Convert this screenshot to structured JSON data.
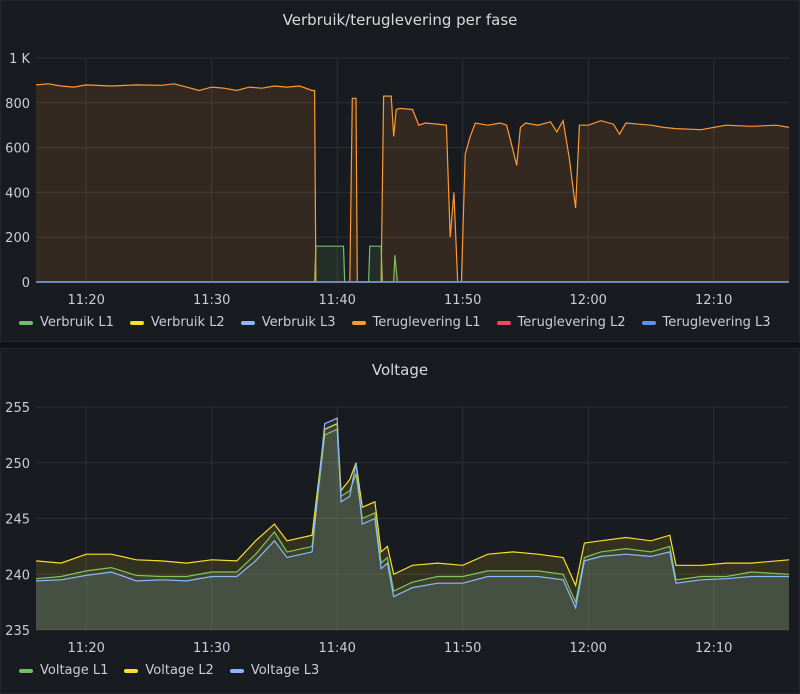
{
  "colors": {
    "verbruik_l1": "#73bf69",
    "verbruik_l2": "#fade2a",
    "verbruik_l3": "#8ab8ff",
    "teruglevering_l1": "#ff9830",
    "teruglevering_l2": "#f2495c",
    "teruglevering_l3": "#5794f2",
    "voltage_l1": "#73bf69",
    "voltage_l2": "#fade2a",
    "voltage_l3": "#8ab8ff"
  },
  "panels": {
    "power": {
      "title": "Verbruik/teruglevering per fase"
    },
    "voltage": {
      "title": "Voltage"
    }
  },
  "chart_data": [
    {
      "type": "area",
      "title": "Verbruik/teruglevering per fase",
      "xlabel": "",
      "ylabel": "",
      "x_ticks": [
        "11:20",
        "11:30",
        "11:40",
        "11:50",
        "12:00",
        "12:10"
      ],
      "y_ticks": [
        "0",
        "200",
        "400",
        "600",
        "800",
        "1 K"
      ],
      "xlim": [
        "11:16",
        "12:16"
      ],
      "ylim": [
        0,
        1000
      ],
      "grid": true,
      "legend_position": "bottom-left",
      "series": [
        {
          "name": "Verbruik L1",
          "color_key": "verbruik_l1",
          "points": [
            [
              "11:16",
              0
            ],
            [
              "11:38.2",
              0
            ],
            [
              "11:38.3",
              160
            ],
            [
              "11:40.5",
              160
            ],
            [
              "11:40.6",
              0
            ],
            [
              "11:42.5",
              0
            ],
            [
              "11:42.6",
              160
            ],
            [
              "11:43.5",
              160
            ],
            [
              "11:43.6",
              0
            ],
            [
              "11:44.5",
              0
            ],
            [
              "11:44.6",
              120
            ],
            [
              "11:44.8",
              0
            ],
            [
              "12:16",
              0
            ]
          ]
        },
        {
          "name": "Verbruik L2",
          "color_key": "verbruik_l2",
          "points": [
            [
              "11:16",
              0
            ],
            [
              "12:16",
              0
            ]
          ]
        },
        {
          "name": "Verbruik L3",
          "color_key": "verbruik_l3",
          "points": [
            [
              "11:16",
              0
            ],
            [
              "12:16",
              0
            ]
          ]
        },
        {
          "name": "Teruglevering L1",
          "color_key": "teruglevering_l1",
          "points": [
            [
              "11:16",
              880
            ],
            [
              "11:17",
              885
            ],
            [
              "11:18",
              875
            ],
            [
              "11:19",
              870
            ],
            [
              "11:20",
              880
            ],
            [
              "11:22",
              875
            ],
            [
              "11:24",
              880
            ],
            [
              "11:26",
              878
            ],
            [
              "11:27",
              885
            ],
            [
              "11:28",
              870
            ],
            [
              "11:29",
              855
            ],
            [
              "11:30",
              870
            ],
            [
              "11:31",
              865
            ],
            [
              "11:32",
              855
            ],
            [
              "11:33",
              870
            ],
            [
              "11:34",
              865
            ],
            [
              "11:35",
              875
            ],
            [
              "11:36",
              870
            ],
            [
              "11:37",
              875
            ],
            [
              "11:38",
              855
            ],
            [
              "11:38.2",
              855
            ],
            [
              "11:38.3",
              0
            ],
            [
              "11:41",
              0
            ],
            [
              "11:41.2",
              820
            ],
            [
              "11:41.5",
              820
            ],
            [
              "11:41.6",
              0
            ],
            [
              "11:43.5",
              0
            ],
            [
              "11:43.7",
              830
            ],
            [
              "11:44.3",
              830
            ],
            [
              "11:44.5",
              650
            ],
            [
              "11:44.7",
              770
            ],
            [
              "11:45",
              775
            ],
            [
              "11:46",
              770
            ],
            [
              "11:46.5",
              700
            ],
            [
              "11:47",
              710
            ],
            [
              "11:48",
              705
            ],
            [
              "11:48.7",
              700
            ],
            [
              "11:49",
              200
            ],
            [
              "11:49.3",
              400
            ],
            [
              "11:49.6",
              0
            ],
            [
              "11:49.9",
              0
            ],
            [
              "11:50.2",
              570
            ],
            [
              "11:50.6",
              650
            ],
            [
              "11:51",
              710
            ],
            [
              "11:52",
              700
            ],
            [
              "11:53",
              710
            ],
            [
              "11:53.5",
              700
            ],
            [
              "11:54",
              590
            ],
            [
              "11:54.3",
              520
            ],
            [
              "11:54.6",
              690
            ],
            [
              "11:55",
              710
            ],
            [
              "11:56",
              700
            ],
            [
              "11:57",
              715
            ],
            [
              "11:57.5",
              670
            ],
            [
              "11:58",
              720
            ],
            [
              "11:58.5",
              550
            ],
            [
              "11:59",
              330
            ],
            [
              "11:59.3",
              700
            ],
            [
              "12:00",
              700
            ],
            [
              "12:01",
              720
            ],
            [
              "12:02",
              705
            ],
            [
              "12:02.5",
              660
            ],
            [
              "12:03",
              710
            ],
            [
              "12:05",
              700
            ],
            [
              "12:06",
              690
            ],
            [
              "12:07",
              685
            ],
            [
              "12:09",
              680
            ],
            [
              "12:10",
              690
            ],
            [
              "12:11",
              700
            ],
            [
              "12:13",
              695
            ],
            [
              "12:15",
              700
            ],
            [
              "12:16",
              690
            ]
          ]
        },
        {
          "name": "Teruglevering L2",
          "color_key": "teruglevering_l2",
          "points": [
            [
              "11:16",
              0
            ],
            [
              "12:16",
              0
            ]
          ]
        },
        {
          "name": "Teruglevering L3",
          "color_key": "teruglevering_l3",
          "points": [
            [
              "11:16",
              0
            ],
            [
              "12:16",
              0
            ]
          ]
        }
      ]
    },
    {
      "type": "area",
      "title": "Voltage",
      "xlabel": "",
      "ylabel": "",
      "x_ticks": [
        "11:20",
        "11:30",
        "11:40",
        "11:50",
        "12:00",
        "12:10"
      ],
      "y_ticks": [
        "235",
        "240",
        "245",
        "250",
        "255"
      ],
      "xlim": [
        "11:16",
        "12:16"
      ],
      "ylim": [
        235,
        255
      ],
      "grid": true,
      "legend_position": "bottom-left",
      "series": [
        {
          "name": "Voltage L1",
          "color_key": "voltage_l1",
          "points": [
            [
              "11:16",
              239.6
            ],
            [
              "11:18",
              239.8
            ],
            [
              "11:20",
              240.3
            ],
            [
              "11:22",
              240.6
            ],
            [
              "11:24",
              239.9
            ],
            [
              "11:26",
              239.8
            ],
            [
              "11:28",
              239.8
            ],
            [
              "11:30",
              240.2
            ],
            [
              "11:32",
              240.2
            ],
            [
              "11:33.5",
              241.8
            ],
            [
              "11:35",
              243.8
            ],
            [
              "11:36",
              242.0
            ],
            [
              "11:38",
              242.5
            ],
            [
              "11:39",
              252.5
            ],
            [
              "11:40",
              253.0
            ],
            [
              "11:40.3",
              247.0
            ],
            [
              "11:41",
              247.5
            ],
            [
              "11:41.5",
              249.0
            ],
            [
              "11:42",
              245.0
            ],
            [
              "11:43",
              245.5
            ],
            [
              "11:43.5",
              241.0
            ],
            [
              "11:44",
              241.5
            ],
            [
              "11:44.5",
              238.5
            ],
            [
              "11:46",
              239.3
            ],
            [
              "11:48",
              239.8
            ],
            [
              "11:50",
              239.8
            ],
            [
              "11:52",
              240.3
            ],
            [
              "11:54",
              240.3
            ],
            [
              "11:56",
              240.3
            ],
            [
              "11:58",
              240.0
            ],
            [
              "11:59",
              237.5
            ],
            [
              "11:59.7",
              241.5
            ],
            [
              "12:01",
              242.0
            ],
            [
              "12:03",
              242.3
            ],
            [
              "12:05",
              242.0
            ],
            [
              "12:06.5",
              242.5
            ],
            [
              "12:07",
              239.5
            ],
            [
              "12:09",
              239.8
            ],
            [
              "12:11",
              239.8
            ],
            [
              "12:13",
              240.2
            ],
            [
              "12:16",
              240.0
            ]
          ]
        },
        {
          "name": "Voltage L2",
          "color_key": "voltage_l2",
          "points": [
            [
              "11:16",
              241.2
            ],
            [
              "11:18",
              241.0
            ],
            [
              "11:20",
              241.8
            ],
            [
              "11:22",
              241.8
            ],
            [
              "11:24",
              241.3
            ],
            [
              "11:26",
              241.2
            ],
            [
              "11:28",
              241.0
            ],
            [
              "11:30",
              241.3
            ],
            [
              "11:32",
              241.2
            ],
            [
              "11:33.5",
              243.0
            ],
            [
              "11:35",
              244.5
            ],
            [
              "11:36",
              243.0
            ],
            [
              "11:38",
              243.5
            ],
            [
              "11:39",
              253.0
            ],
            [
              "11:40",
              253.5
            ],
            [
              "11:40.3",
              247.5
            ],
            [
              "11:41",
              248.5
            ],
            [
              "11:41.5",
              250.0
            ],
            [
              "11:42",
              246.0
            ],
            [
              "11:43",
              246.5
            ],
            [
              "11:43.5",
              242.0
            ],
            [
              "11:44",
              242.5
            ],
            [
              "11:44.5",
              240.0
            ],
            [
              "11:46",
              240.8
            ],
            [
              "11:48",
              241.0
            ],
            [
              "11:50",
              240.8
            ],
            [
              "11:52",
              241.8
            ],
            [
              "11:54",
              242.0
            ],
            [
              "11:56",
              241.8
            ],
            [
              "11:58",
              241.5
            ],
            [
              "11:59",
              239.0
            ],
            [
              "11:59.7",
              242.8
            ],
            [
              "12:01",
              243.0
            ],
            [
              "12:03",
              243.3
            ],
            [
              "12:05",
              243.0
            ],
            [
              "12:06.5",
              243.5
            ],
            [
              "12:07",
              240.8
            ],
            [
              "12:09",
              240.8
            ],
            [
              "12:11",
              241.0
            ],
            [
              "12:13",
              241.0
            ],
            [
              "12:16",
              241.3
            ]
          ]
        },
        {
          "name": "Voltage L3",
          "color_key": "voltage_l3",
          "points": [
            [
              "11:16",
              239.4
            ],
            [
              "11:18",
              239.5
            ],
            [
              "11:20",
              239.9
            ],
            [
              "11:22",
              240.2
            ],
            [
              "11:24",
              239.4
            ],
            [
              "11:26",
              239.5
            ],
            [
              "11:28",
              239.4
            ],
            [
              "11:30",
              239.8
            ],
            [
              "11:32",
              239.8
            ],
            [
              "11:33.5",
              241.2
            ],
            [
              "11:35",
              243.0
            ],
            [
              "11:36",
              241.5
            ],
            [
              "11:38",
              242.0
            ],
            [
              "11:39",
              253.5
            ],
            [
              "11:40",
              254.0
            ],
            [
              "11:40.3",
              246.5
            ],
            [
              "11:41",
              247.0
            ],
            [
              "11:41.5",
              250.0
            ],
            [
              "11:42",
              244.5
            ],
            [
              "11:43",
              245.0
            ],
            [
              "11:43.5",
              240.5
            ],
            [
              "11:44",
              241.0
            ],
            [
              "11:44.5",
              238.0
            ],
            [
              "11:46",
              238.8
            ],
            [
              "11:48",
              239.2
            ],
            [
              "11:50",
              239.2
            ],
            [
              "11:52",
              239.8
            ],
            [
              "11:54",
              239.8
            ],
            [
              "11:56",
              239.8
            ],
            [
              "11:58",
              239.5
            ],
            [
              "11:59",
              237.0
            ],
            [
              "11:59.7",
              241.2
            ],
            [
              "12:01",
              241.6
            ],
            [
              "12:03",
              241.8
            ],
            [
              "12:05",
              241.6
            ],
            [
              "12:06.5",
              242.0
            ],
            [
              "12:07",
              239.2
            ],
            [
              "12:09",
              239.5
            ],
            [
              "12:11",
              239.6
            ],
            [
              "12:13",
              239.8
            ],
            [
              "12:16",
              239.8
            ]
          ]
        }
      ]
    }
  ]
}
